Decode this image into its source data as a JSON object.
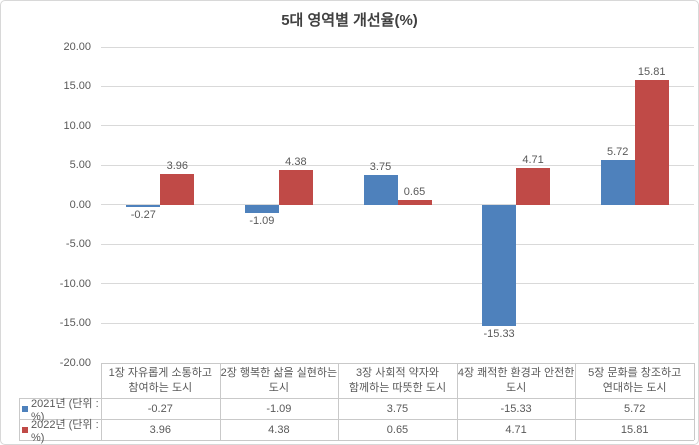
{
  "chart_data": {
    "type": "bar",
    "title": "5대 영역별 개선율(%)",
    "categories": [
      "1장 자유롭게 소통하고\n참여하는 도시",
      "2장 행복한 삶을 실현하는\n도시",
      "3장 사회적 약자와\n함께하는 따뜻한 도시",
      "4장 쾌적한 환경과 안전한\n도시",
      "5장 문화를 창조하고\n연대하는 도시"
    ],
    "series": [
      {
        "name": "2021년 (단위 : %)",
        "color": "#4E81BC",
        "values": [
          -0.27,
          -1.09,
          3.75,
          -15.33,
          5.72
        ]
      },
      {
        "name": "2022년 (단위 : %)",
        "color": "#C04A47",
        "values": [
          3.96,
          4.38,
          0.65,
          4.71,
          15.81
        ]
      }
    ],
    "ylim": [
      -20,
      20
    ],
    "ytick_step": 5,
    "ytick_labels": [
      "20.00",
      "15.00",
      "10.00",
      "5.00",
      "0.00",
      "-5.00",
      "-10.00",
      "-15.00",
      "-20.00"
    ],
    "grid": true,
    "legend_position": "bottom-data-table",
    "colors": {
      "series_2021": "#4E81BC",
      "series_2022": "#C04A47",
      "gridline": "#d9d9d9",
      "table_border": "#c9c9c9",
      "text": "#595959",
      "title_text": "#404040",
      "chart_border": "#d8d8d8"
    }
  }
}
